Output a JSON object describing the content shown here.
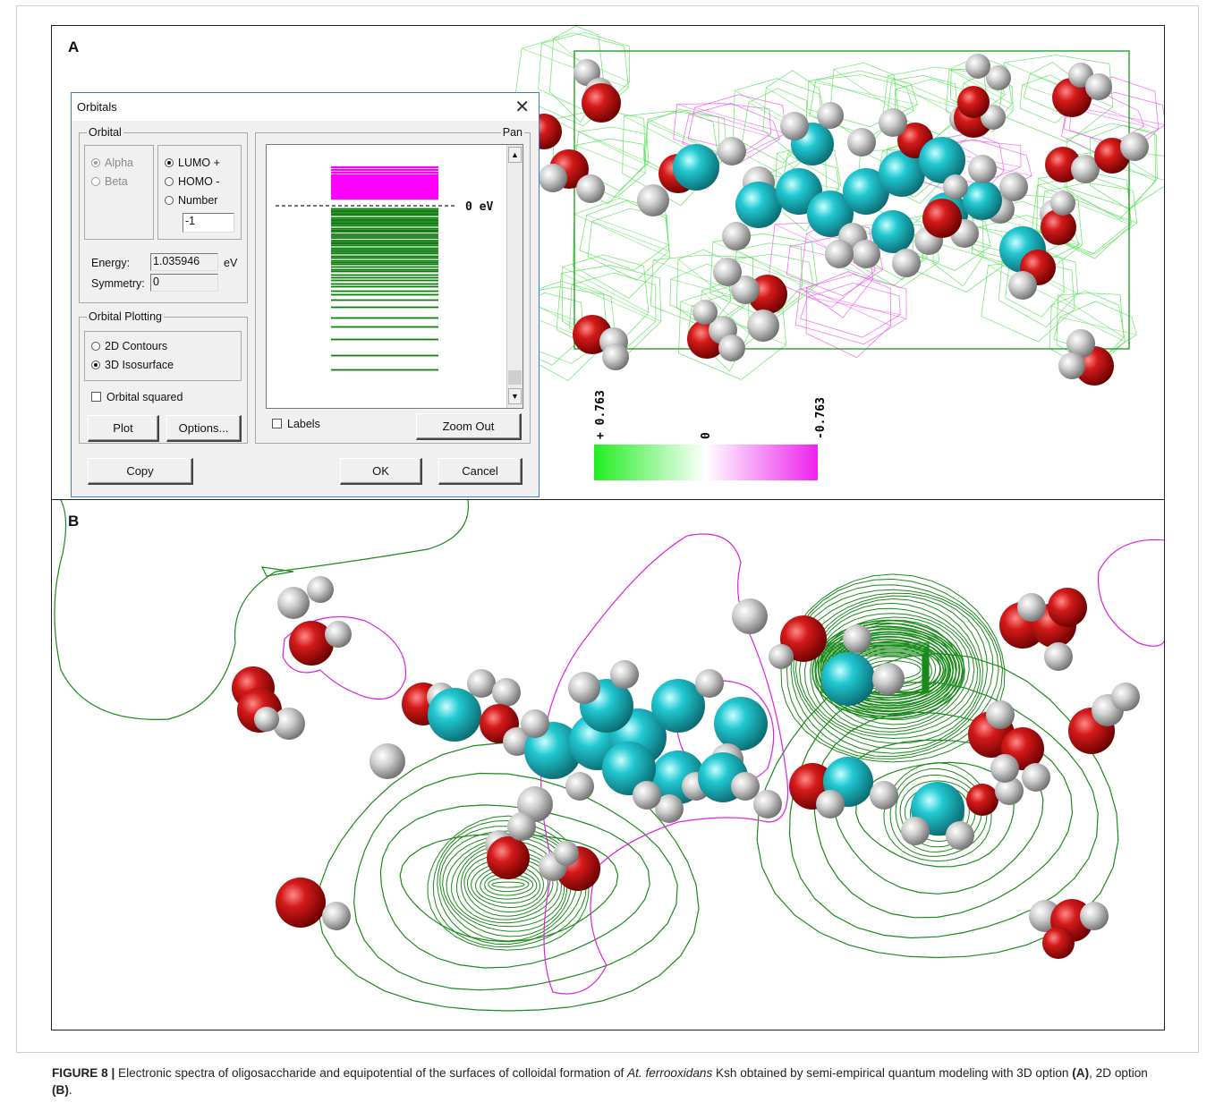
{
  "panel_a": {
    "letter": "A",
    "dialog": {
      "title": "Orbitals",
      "close": "✕",
      "orbital_group": "Orbital",
      "alpha": "Alpha",
      "beta": "Beta",
      "lumo": "LUMO +",
      "homo": "HOMO -",
      "number": "Number",
      "number_value": "-1",
      "energy_label": "Energy:",
      "energy_value": "1.035946",
      "energy_unit": "eV",
      "symmetry_label": "Symmetry:",
      "symmetry_value": "0",
      "plotting_group": "Orbital Plotting",
      "contours_2d": "2D Contours",
      "isosurface_3d": "3D Isosurface",
      "orbital_squared": "Orbital squared",
      "plot": "Plot",
      "options": "Options...",
      "pan_label": "Pan",
      "zero_ev": "0 eV",
      "labels": "Labels",
      "zoom_out": "Zoom Out",
      "copy": "Copy",
      "ok": "OK",
      "cancel": "Cancel"
    },
    "colorbar": {
      "max_label": "+ 0.763",
      "mid_label": "0",
      "min_label": "-0.763",
      "positive_color": "#22ee22",
      "negative_color": "#ee22ee"
    }
  },
  "panel_b": {
    "letter": "B"
  },
  "colors": {
    "oxygen": "#cc1111",
    "carbon": "#1cc6cc",
    "hydrogen": "#c8c8c8",
    "contour_positive": "#1a8a1a",
    "contour_negative": "#e020e0",
    "homo_levels": "#0a7d0a",
    "lumo_levels": "#ff00ff"
  },
  "caption": {
    "figure_label": "FIGURE 8 |",
    "text_1": " Electronic spectra of oligosaccharide and equipotential of the surfaces of colloidal formation of ",
    "species": "At. ferrooxidans",
    "text_2": " Ksh obtained by semi-empirical quantum modeling with 3D option ",
    "ref_a": "(A)",
    "text_3": ", 2D option ",
    "ref_b": "(B)",
    "text_4": "."
  }
}
